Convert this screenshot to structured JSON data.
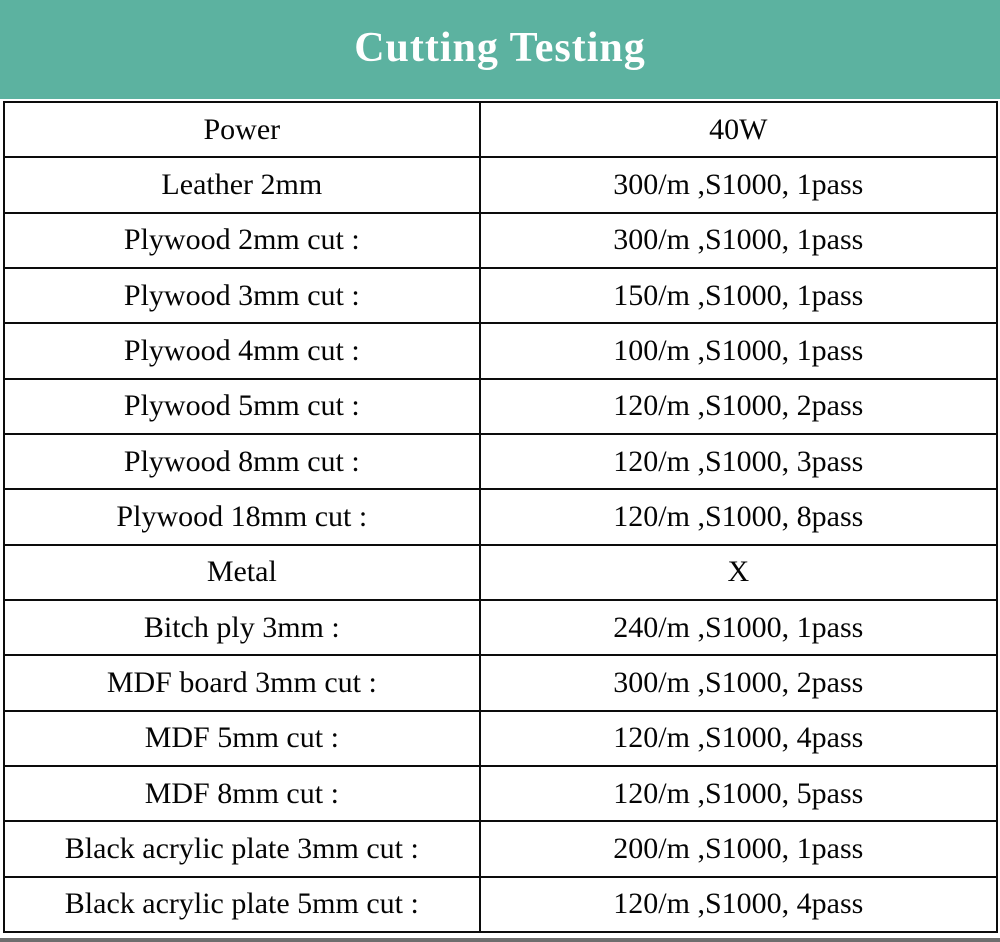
{
  "banner": {
    "title": "Cutting Testing",
    "background_color": "#5cb2a0",
    "text_color": "#ffffff"
  },
  "table": {
    "rows": [
      [
        "Power",
        "40W"
      ],
      [
        "Leather 2mm",
        "300/m ,S1000, 1pass"
      ],
      [
        "Plywood 2mm cut :",
        "300/m ,S1000, 1pass"
      ],
      [
        "Plywood 3mm cut :",
        "150/m ,S1000, 1pass"
      ],
      [
        "Plywood 4mm cut :",
        "100/m ,S1000, 1pass"
      ],
      [
        "Plywood 5mm cut :",
        "120/m ,S1000, 2pass"
      ],
      [
        "Plywood 8mm cut :",
        "120/m ,S1000, 3pass"
      ],
      [
        "Plywood 18mm cut :",
        "120/m ,S1000, 8pass"
      ],
      [
        "Metal",
        "X"
      ],
      [
        "Bitch ply 3mm :",
        "240/m ,S1000, 1pass"
      ],
      [
        "MDF board 3mm cut :",
        "300/m ,S1000, 2pass"
      ],
      [
        "MDF 5mm cut :",
        "120/m ,S1000, 4pass"
      ],
      [
        "MDF 8mm cut :",
        "120/m ,S1000, 5pass"
      ],
      [
        "Black acrylic plate 3mm cut :",
        "200/m ,S1000, 1pass"
      ],
      [
        "Black acrylic plate 5mm cut :",
        "120/m ,S1000, 4pass"
      ]
    ],
    "border_color": "#0c0c0c",
    "text_color": "#050505"
  },
  "bottom_strip_color": "#6e6e6e"
}
